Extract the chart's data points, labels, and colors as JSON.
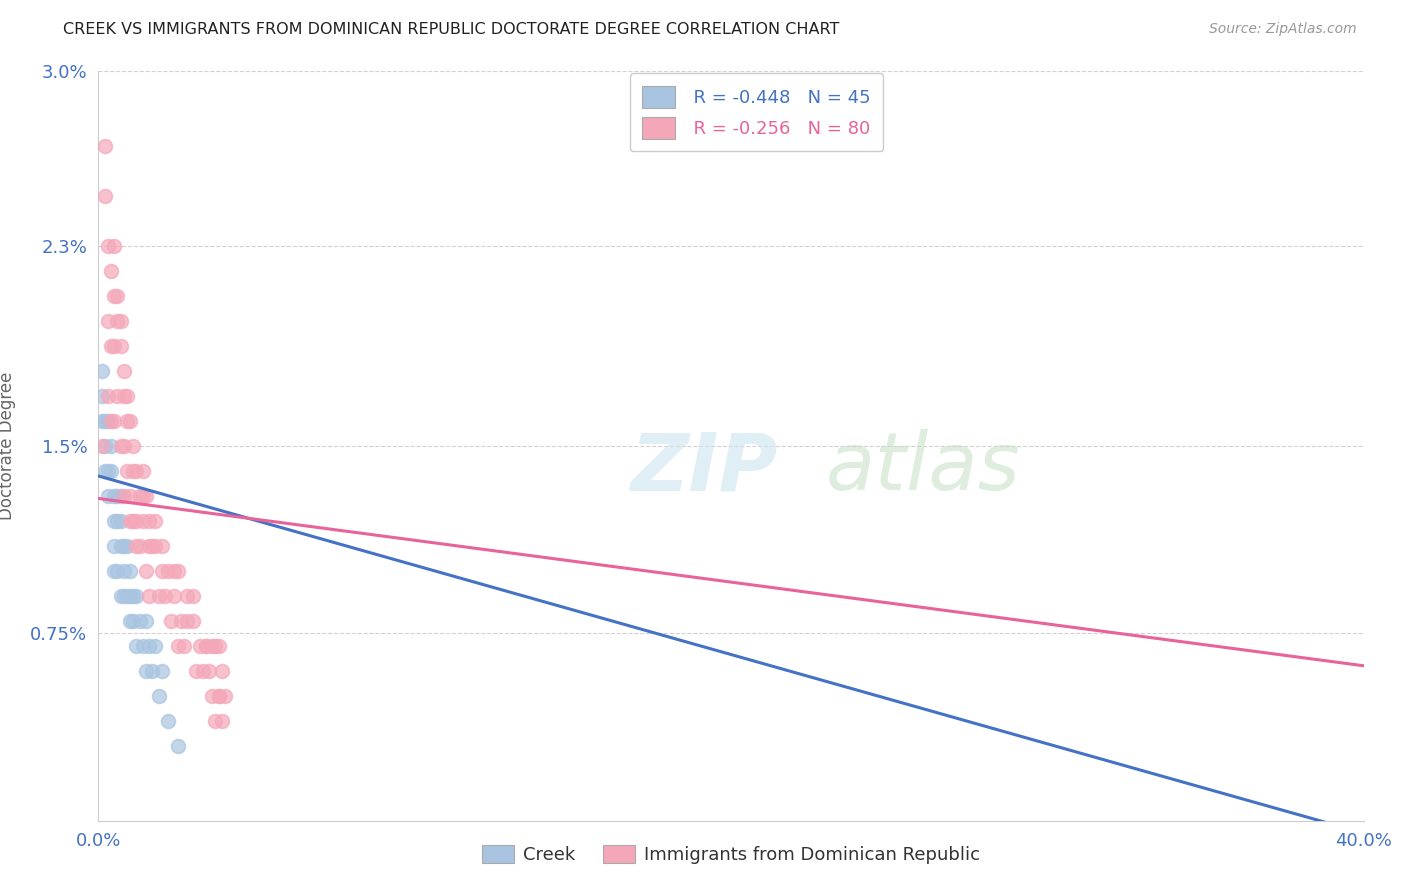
{
  "title": "CREEK VS IMMIGRANTS FROM DOMINICAN REPUBLIC DOCTORATE DEGREE CORRELATION CHART",
  "source_text": "Source: ZipAtlas.com",
  "ylabel": "Doctorate Degree",
  "xlim": [
    0.0,
    0.4
  ],
  "ylim": [
    0.0,
    0.03
  ],
  "xtick_labels": [
    "0.0%",
    "40.0%"
  ],
  "xtick_positions": [
    0.0,
    0.4
  ],
  "ytick_labels": [
    "0.75%",
    "1.5%",
    "2.3%",
    "3.0%"
  ],
  "ytick_positions": [
    0.0075,
    0.015,
    0.023,
    0.03
  ],
  "grid_color": "#cccccc",
  "background_color": "#ffffff",
  "creek_color": "#a8c4e0",
  "dr_color": "#f4a7b9",
  "creek_line_color": "#4472c4",
  "dr_line_color": "#e8639a",
  "legend_r_creek": "R = -0.448",
  "legend_n_creek": "N = 45",
  "legend_r_dr": "R = -0.256",
  "legend_n_dr": "N = 80",
  "creek_label": "Creek",
  "dr_label": "Immigrants from Dominican Republic",
  "creek_trend_y_start": 0.0138,
  "creek_trend_y_end": -0.0005,
  "dr_trend_y_start": 0.0129,
  "dr_trend_y_end": 0.0062,
  "creek_scatter_x": [
    0.001,
    0.001,
    0.001,
    0.002,
    0.002,
    0.002,
    0.003,
    0.003,
    0.003,
    0.004,
    0.004,
    0.005,
    0.005,
    0.005,
    0.005,
    0.006,
    0.006,
    0.006,
    0.007,
    0.007,
    0.007,
    0.007,
    0.008,
    0.008,
    0.008,
    0.009,
    0.009,
    0.01,
    0.01,
    0.01,
    0.011,
    0.011,
    0.012,
    0.012,
    0.013,
    0.014,
    0.015,
    0.015,
    0.016,
    0.017,
    0.018,
    0.019,
    0.02,
    0.022,
    0.025
  ],
  "creek_scatter_y": [
    0.018,
    0.017,
    0.016,
    0.016,
    0.015,
    0.014,
    0.016,
    0.014,
    0.013,
    0.014,
    0.015,
    0.013,
    0.012,
    0.011,
    0.01,
    0.013,
    0.012,
    0.01,
    0.013,
    0.012,
    0.011,
    0.009,
    0.011,
    0.01,
    0.009,
    0.011,
    0.009,
    0.01,
    0.009,
    0.008,
    0.009,
    0.008,
    0.009,
    0.007,
    0.008,
    0.007,
    0.008,
    0.006,
    0.007,
    0.006,
    0.007,
    0.005,
    0.006,
    0.004,
    0.003
  ],
  "dr_scatter_x": [
    0.001,
    0.002,
    0.003,
    0.003,
    0.004,
    0.004,
    0.005,
    0.005,
    0.005,
    0.006,
    0.006,
    0.007,
    0.007,
    0.008,
    0.008,
    0.008,
    0.009,
    0.009,
    0.01,
    0.01,
    0.011,
    0.011,
    0.012,
    0.012,
    0.013,
    0.013,
    0.014,
    0.014,
    0.015,
    0.015,
    0.016,
    0.016,
    0.017,
    0.018,
    0.019,
    0.02,
    0.021,
    0.022,
    0.023,
    0.024,
    0.025,
    0.025,
    0.026,
    0.027,
    0.028,
    0.03,
    0.031,
    0.032,
    0.033,
    0.034,
    0.035,
    0.036,
    0.036,
    0.037,
    0.037,
    0.038,
    0.038,
    0.039,
    0.039,
    0.04,
    0.002,
    0.003,
    0.004,
    0.005,
    0.006,
    0.007,
    0.008,
    0.009,
    0.01,
    0.011,
    0.012,
    0.014,
    0.016,
    0.018,
    0.02,
    0.024,
    0.028,
    0.03,
    0.034,
    0.038
  ],
  "dr_scatter_y": [
    0.015,
    0.025,
    0.02,
    0.017,
    0.019,
    0.016,
    0.021,
    0.019,
    0.016,
    0.02,
    0.017,
    0.019,
    0.015,
    0.018,
    0.015,
    0.013,
    0.017,
    0.014,
    0.016,
    0.013,
    0.015,
    0.012,
    0.014,
    0.011,
    0.013,
    0.011,
    0.014,
    0.012,
    0.013,
    0.01,
    0.012,
    0.009,
    0.011,
    0.012,
    0.009,
    0.011,
    0.009,
    0.01,
    0.008,
    0.009,
    0.01,
    0.007,
    0.008,
    0.007,
    0.008,
    0.009,
    0.006,
    0.007,
    0.006,
    0.007,
    0.006,
    0.007,
    0.005,
    0.007,
    0.004,
    0.007,
    0.005,
    0.006,
    0.004,
    0.005,
    0.027,
    0.023,
    0.022,
    0.023,
    0.021,
    0.02,
    0.017,
    0.016,
    0.012,
    0.014,
    0.012,
    0.013,
    0.011,
    0.011,
    0.01,
    0.01,
    0.009,
    0.008,
    0.007,
    0.005
  ]
}
